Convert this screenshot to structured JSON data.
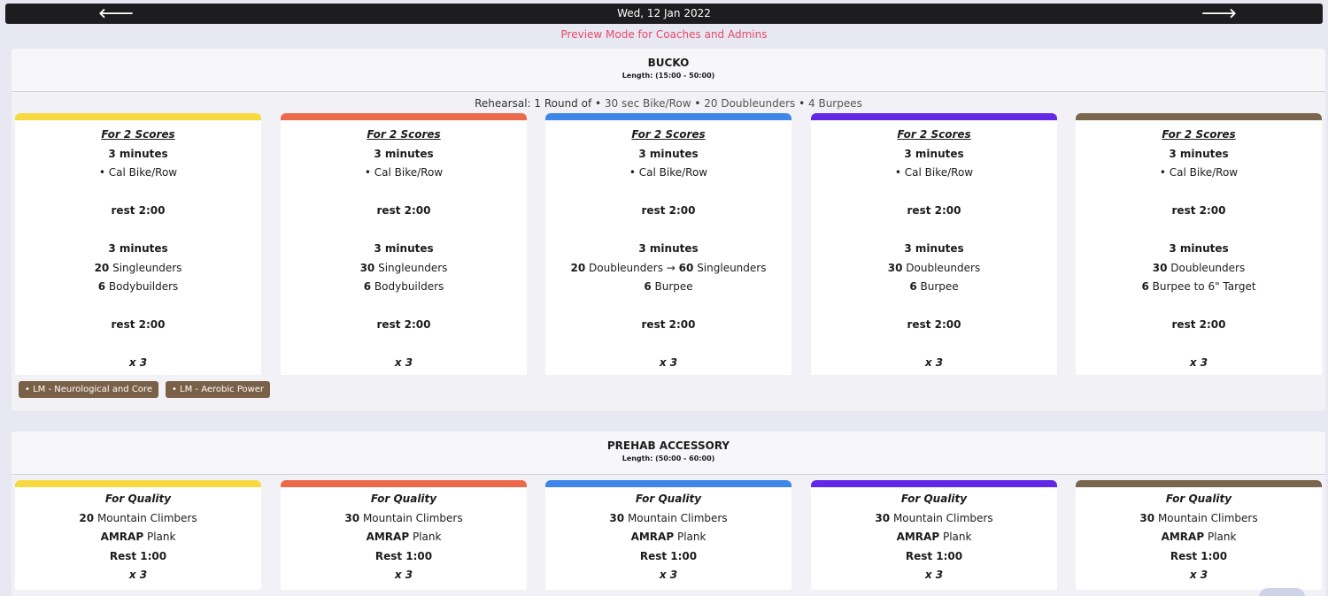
{
  "header": {
    "date": "Wed, 12 Jan 2022",
    "prev_icon": "arrow-left-icon",
    "next_icon": "arrow-right-icon",
    "prev_glyph": "🡐",
    "next_glyph": "🡒"
  },
  "preview_text": "Preview Mode for Coaches and Admins",
  "colors": {
    "track_colors": [
      "#f5d93f",
      "#ec6a4b",
      "#3f86ea",
      "#6129e6",
      "#7a654e"
    ],
    "tag_bg": "#7a6047",
    "preview": "#e8496b"
  },
  "sections": [
    {
      "title": "BUCKO",
      "length": "Length: (15:00 - 50:00)",
      "rehearsal": {
        "prefix": "Rehearsal: 1 Round of",
        "items": [
          "30 sec Bike/Row",
          "20 Doubleunders",
          "4 Burpees"
        ]
      },
      "cards": [
        {
          "heading": "For 2 Scores",
          "l1": "3 minutes",
          "l2": "• Cal Bike/Row",
          "rest1": "rest 2:00",
          "l3": "3 minutes",
          "m1n": "20",
          "m1": "Singleunders",
          "m2n": "6",
          "m2": "Bodybuilders",
          "rest2": "rest 2:00",
          "rounds": "x 3"
        },
        {
          "heading": "For 2 Scores",
          "l1": "3 minutes",
          "l2": "• Cal Bike/Row",
          "rest1": "rest 2:00",
          "l3": "3 minutes",
          "m1n": "30",
          "m1": "Singleunders",
          "m2n": "6",
          "m2": "Bodybuilders",
          "rest2": "rest 2:00",
          "rounds": "x 3"
        },
        {
          "heading": "For 2 Scores",
          "l1": "3 minutes",
          "l2": "• Cal Bike/Row",
          "rest1": "rest 2:00",
          "l3": "3 minutes",
          "m1n": "20",
          "m1": "Doubleunders →",
          "m1bn": "60",
          "m1b": "Singleunders",
          "m2n": "6",
          "m2": "Burpee",
          "rest2": "rest 2:00",
          "rounds": "x 3"
        },
        {
          "heading": "For 2 Scores",
          "l1": "3 minutes",
          "l2": "• Cal Bike/Row",
          "rest1": "rest 2:00",
          "l3": "3 minutes",
          "m1n": "30",
          "m1": "Doubleunders",
          "m2n": "6",
          "m2": "Burpee",
          "rest2": "rest 2:00",
          "rounds": "x 3"
        },
        {
          "heading": "For 2 Scores",
          "l1": "3 minutes",
          "l2": "• Cal Bike/Row",
          "rest1": "rest 2:00",
          "l3": "3 minutes",
          "m1n": "30",
          "m1": "Doubleunders",
          "m2n": "6",
          "m2": "Burpee to 6\" Target",
          "rest2": "rest 2:00",
          "rounds": "x 3"
        }
      ],
      "tags": [
        "• LM - Neurological and Core",
        "• LM - Aerobic Power"
      ]
    },
    {
      "title": "PREHAB ACCESSORY",
      "length": "Length: (50:00 - 60:00)",
      "cards": [
        {
          "heading": "For Quality",
          "m1n": "20",
          "m1": "Mountain Climbers",
          "m2n": "AMRAP",
          "m2": "Plank",
          "rest": "Rest 1:00",
          "rounds": "x 3"
        },
        {
          "heading": "For Quality",
          "m1n": "30",
          "m1": "Mountain Climbers",
          "m2n": "AMRAP",
          "m2": "Plank",
          "rest": "Rest 1:00",
          "rounds": "x 3"
        },
        {
          "heading": "For Quality",
          "m1n": "30",
          "m1": "Mountain Climbers",
          "m2n": "AMRAP",
          "m2": "Plank",
          "rest": "Rest 1:00",
          "rounds": "x 3"
        },
        {
          "heading": "For Quality",
          "m1n": "30",
          "m1": "Mountain Climbers",
          "m2n": "AMRAP",
          "m2": "Plank",
          "rest": "Rest 1:00",
          "rounds": "x 3"
        },
        {
          "heading": "For Quality",
          "m1n": "30",
          "m1": "Mountain Climbers",
          "m2n": "AMRAP",
          "m2": "Plank",
          "rest": "Rest 1:00",
          "rounds": "x 3"
        }
      ]
    }
  ]
}
